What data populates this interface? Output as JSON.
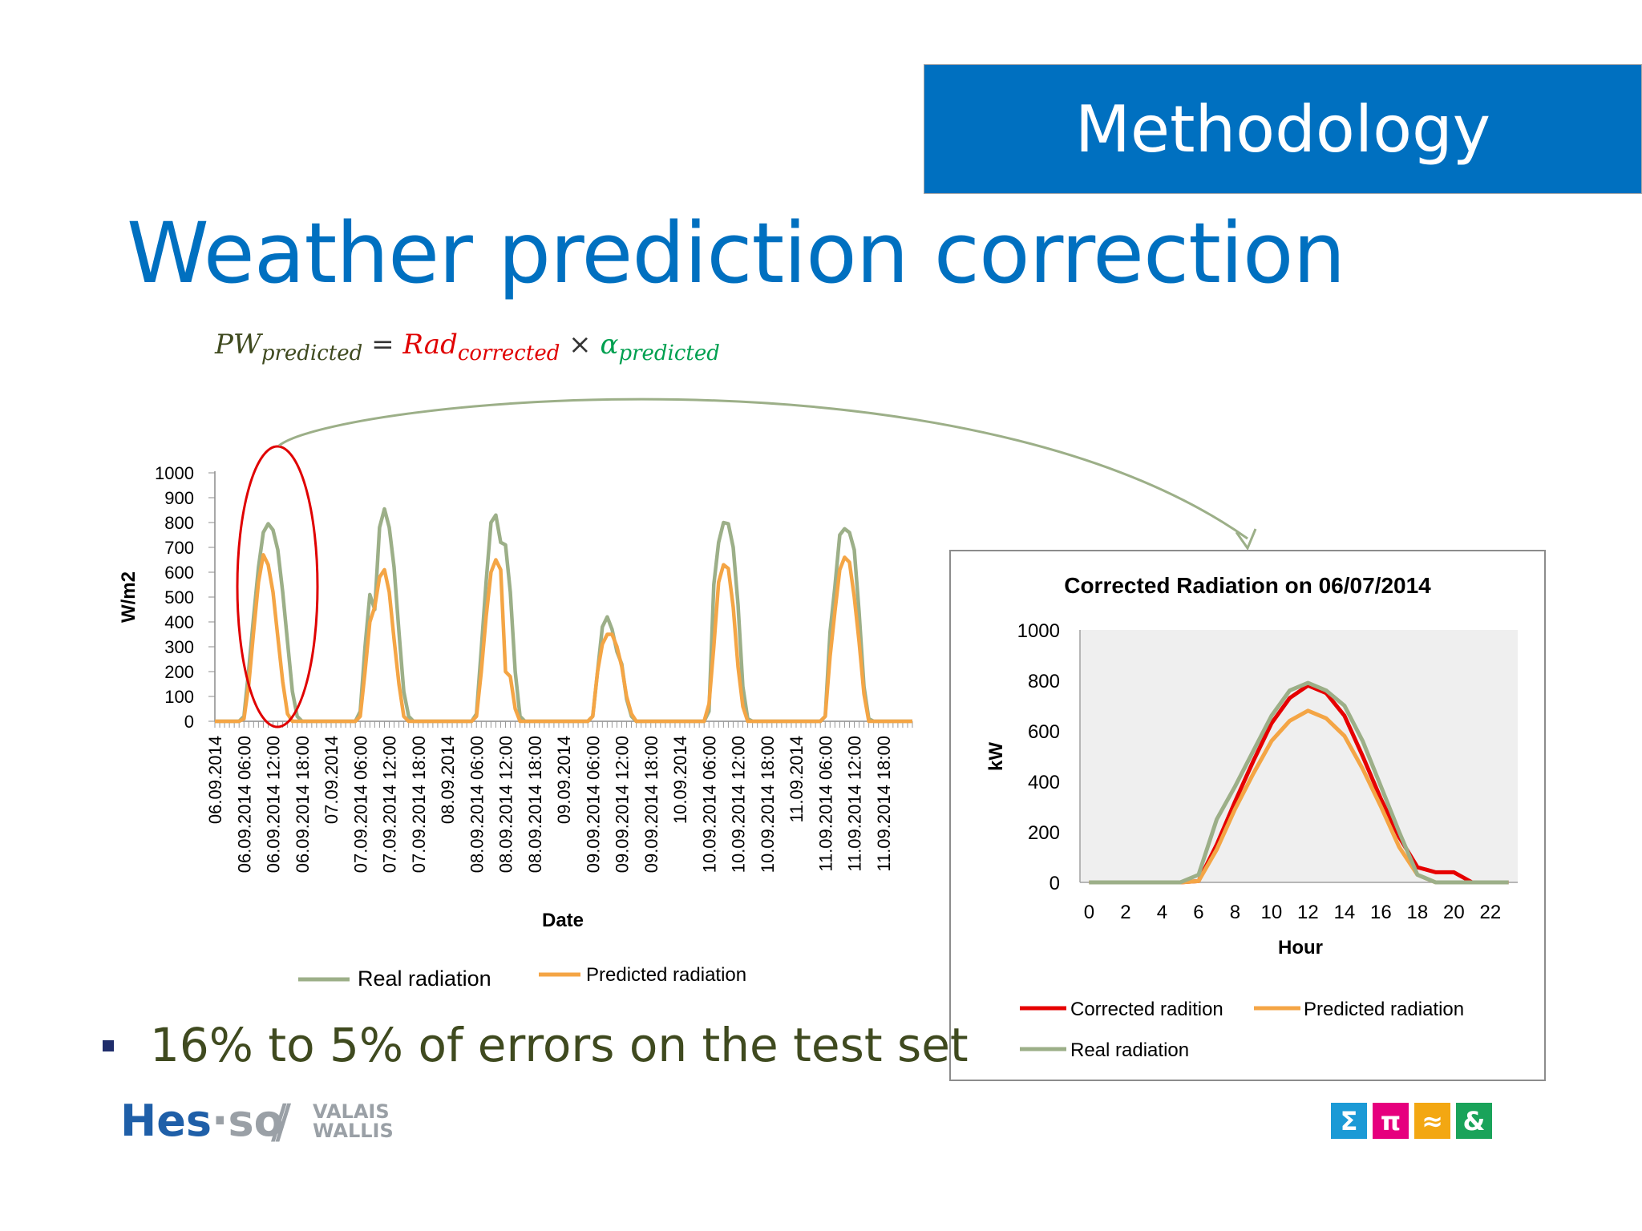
{
  "slide": {
    "section_title": "Methodology",
    "heading": "Weather prediction correction",
    "formula": {
      "lhs": "PW",
      "lhs_sub": "predicted",
      "equals": "=",
      "term1": "Rad",
      "term1_sub": "corrected",
      "times": "×",
      "term2": "α",
      "term2_sub": "predicted"
    },
    "bullet": "16% to 5% of errors on the test set",
    "logo": {
      "hes": "Hes",
      "dot": "·",
      "so": "so",
      "slashes": "//",
      "region_line1": "VALAIS",
      "region_line2": "WALLIS"
    },
    "icons": [
      "Σ",
      "π",
      "≈",
      "&"
    ],
    "colors": {
      "accent_blue": "#0070c0",
      "real": "#9caf88",
      "predicted": "#f4a545",
      "corrected": "#e60000",
      "highlight": "#e00000"
    }
  },
  "chart_data": [
    {
      "type": "line",
      "title": "",
      "xlabel": "Date",
      "ylabel": "W/m2",
      "ylim": [
        0,
        1000
      ],
      "yticks": [
        0,
        100,
        200,
        300,
        400,
        500,
        600,
        700,
        800,
        900,
        1000
      ],
      "x_unit": "hours from 06.09.2014 00:00",
      "x_range": [
        0,
        144
      ],
      "x_tick_labels": [
        "06.09.2014",
        "06.09.2014 06:00",
        "06.09.2014 12:00",
        "06.09.2014 18:00",
        "07.09.2014",
        "07.09.2014 06:00",
        "07.09.2014 12:00",
        "07.09.2014 18:00",
        "08.09.2014",
        "08.09.2014 06:00",
        "08.09.2014 12:00",
        "08.09.2014 18:00",
        "09.09.2014",
        "09.09.2014 06:00",
        "09.09.2014 12:00",
        "09.09.2014 18:00",
        "10.09.2014",
        "10.09.2014 06:00",
        "10.09.2014 12:00",
        "10.09.2014 18:00",
        "11.09.2014",
        "11.09.2014 06:00",
        "11.09.2014 12:00",
        "11.09.2014 18:00"
      ],
      "legend_position": "bottom",
      "grid": false,
      "series": [
        {
          "name": "Real radiation",
          "points": [
            [
              0,
              0
            ],
            [
              5,
              0
            ],
            [
              6,
              20
            ],
            [
              7,
              210
            ],
            [
              8,
              420
            ],
            [
              9,
              620
            ],
            [
              10,
              760
            ],
            [
              11,
              795
            ],
            [
              12,
              770
            ],
            [
              13,
              690
            ],
            [
              14,
              520
            ],
            [
              15,
              320
            ],
            [
              16,
              120
            ],
            [
              17,
              20
            ],
            [
              18,
              0
            ],
            [
              29,
              0
            ],
            [
              30,
              40
            ],
            [
              31,
              300
            ],
            [
              32,
              510
            ],
            [
              33,
              450
            ],
            [
              34,
              780
            ],
            [
              35,
              855
            ],
            [
              36,
              780
            ],
            [
              37,
              620
            ],
            [
              38,
              360
            ],
            [
              39,
              120
            ],
            [
              40,
              20
            ],
            [
              41,
              0
            ],
            [
              53,
              0
            ],
            [
              54,
              30
            ],
            [
              55,
              290
            ],
            [
              56,
              560
            ],
            [
              57,
              800
            ],
            [
              58,
              830
            ],
            [
              59,
              720
            ],
            [
              60,
              710
            ],
            [
              61,
              520
            ],
            [
              62,
              200
            ],
            [
              63,
              20
            ],
            [
              64,
              0
            ],
            [
              77,
              0
            ],
            [
              78,
              20
            ],
            [
              79,
              200
            ],
            [
              80,
              380
            ],
            [
              81,
              420
            ],
            [
              82,
              370
            ],
            [
              83,
              280
            ],
            [
              84,
              230
            ],
            [
              85,
              90
            ],
            [
              86,
              20
            ],
            [
              87,
              0
            ],
            [
              101,
              0
            ],
            [
              102,
              40
            ],
            [
              103,
              550
            ],
            [
              104,
              720
            ],
            [
              105,
              800
            ],
            [
              106,
              795
            ],
            [
              107,
              700
            ],
            [
              108,
              470
            ],
            [
              109,
              140
            ],
            [
              110,
              10
            ],
            [
              111,
              0
            ],
            [
              125,
              0
            ],
            [
              126,
              20
            ],
            [
              127,
              360
            ],
            [
              128,
              540
            ],
            [
              129,
              750
            ],
            [
              130,
              775
            ],
            [
              131,
              760
            ],
            [
              132,
              690
            ],
            [
              133,
              440
            ],
            [
              134,
              140
            ],
            [
              135,
              10
            ],
            [
              136,
              0
            ],
            [
              144,
              0
            ]
          ]
        },
        {
          "name": "Predicted radiation",
          "points": [
            [
              0,
              0
            ],
            [
              5,
              0
            ],
            [
              6,
              10
            ],
            [
              7,
              150
            ],
            [
              8,
              360
            ],
            [
              9,
              560
            ],
            [
              10,
              670
            ],
            [
              11,
              630
            ],
            [
              12,
              520
            ],
            [
              13,
              340
            ],
            [
              14,
              160
            ],
            [
              15,
              30
            ],
            [
              16,
              0
            ],
            [
              29,
              0
            ],
            [
              30,
              20
            ],
            [
              31,
              200
            ],
            [
              32,
              400
            ],
            [
              33,
              460
            ],
            [
              34,
              580
            ],
            [
              35,
              610
            ],
            [
              36,
              520
            ],
            [
              37,
              330
            ],
            [
              38,
              150
            ],
            [
              39,
              20
            ],
            [
              40,
              0
            ],
            [
              53,
              0
            ],
            [
              54,
              20
            ],
            [
              55,
              200
            ],
            [
              56,
              420
            ],
            [
              57,
              600
            ],
            [
              58,
              650
            ],
            [
              59,
              610
            ],
            [
              60,
              200
            ],
            [
              61,
              180
            ],
            [
              62,
              50
            ],
            [
              63,
              0
            ],
            [
              77,
              0
            ],
            [
              78,
              20
            ],
            [
              79,
              200
            ],
            [
              80,
              310
            ],
            [
              81,
              350
            ],
            [
              82,
              350
            ],
            [
              83,
              300
            ],
            [
              84,
              220
            ],
            [
              85,
              100
            ],
            [
              86,
              30
            ],
            [
              87,
              0
            ],
            [
              101,
              0
            ],
            [
              102,
              70
            ],
            [
              103,
              300
            ],
            [
              104,
              560
            ],
            [
              105,
              630
            ],
            [
              106,
              615
            ],
            [
              107,
              460
            ],
            [
              108,
              220
            ],
            [
              109,
              60
            ],
            [
              110,
              0
            ],
            [
              125,
              0
            ],
            [
              126,
              20
            ],
            [
              127,
              260
            ],
            [
              128,
              440
            ],
            [
              129,
              610
            ],
            [
              130,
              660
            ],
            [
              131,
              640
            ],
            [
              132,
              500
            ],
            [
              133,
              320
            ],
            [
              134,
              110
            ],
            [
              135,
              0
            ],
            [
              144,
              0
            ]
          ]
        }
      ]
    },
    {
      "type": "line",
      "title": "Corrected Radiation on 06/07/2014",
      "xlabel": "Hour",
      "ylabel": "kW",
      "ylim": [
        0,
        1000
      ],
      "xlim": [
        -0.5,
        23.5
      ],
      "yticks": [
        0,
        200,
        400,
        600,
        800,
        1000
      ],
      "xticks": [
        0,
        2,
        4,
        6,
        8,
        10,
        12,
        14,
        16,
        18,
        20,
        22
      ],
      "legend_position": "bottom",
      "plot_background": "#efefef",
      "series": [
        {
          "name": "Corrected radition",
          "x": [
            0,
            1,
            2,
            3,
            4,
            5,
            6,
            7,
            8,
            9,
            10,
            11,
            12,
            13,
            14,
            15,
            16,
            17,
            18,
            19,
            20,
            21,
            22,
            23
          ],
          "values": [
            0,
            0,
            0,
            0,
            0,
            0,
            5,
            150,
            320,
            480,
            630,
            730,
            780,
            750,
            660,
            500,
            330,
            180,
            60,
            40,
            40,
            0,
            0,
            0
          ]
        },
        {
          "name": "Predicted radiation",
          "x": [
            0,
            1,
            2,
            3,
            4,
            5,
            6,
            7,
            8,
            9,
            10,
            11,
            12,
            13,
            14,
            15,
            16,
            17,
            18,
            19,
            20,
            21,
            22,
            23
          ],
          "values": [
            0,
            0,
            0,
            0,
            0,
            0,
            5,
            130,
            290,
            430,
            560,
            640,
            680,
            650,
            580,
            450,
            300,
            140,
            30,
            0,
            0,
            0,
            0,
            0
          ]
        },
        {
          "name": "Real radiation",
          "x": [
            0,
            1,
            2,
            3,
            4,
            5,
            6,
            7,
            8,
            9,
            10,
            11,
            12,
            13,
            14,
            15,
            16,
            17,
            18,
            19,
            20,
            21,
            22,
            23
          ],
          "values": [
            0,
            0,
            0,
            0,
            0,
            0,
            30,
            250,
            380,
            520,
            660,
            760,
            790,
            760,
            700,
            560,
            380,
            200,
            30,
            0,
            0,
            0,
            0,
            0
          ]
        }
      ]
    }
  ]
}
